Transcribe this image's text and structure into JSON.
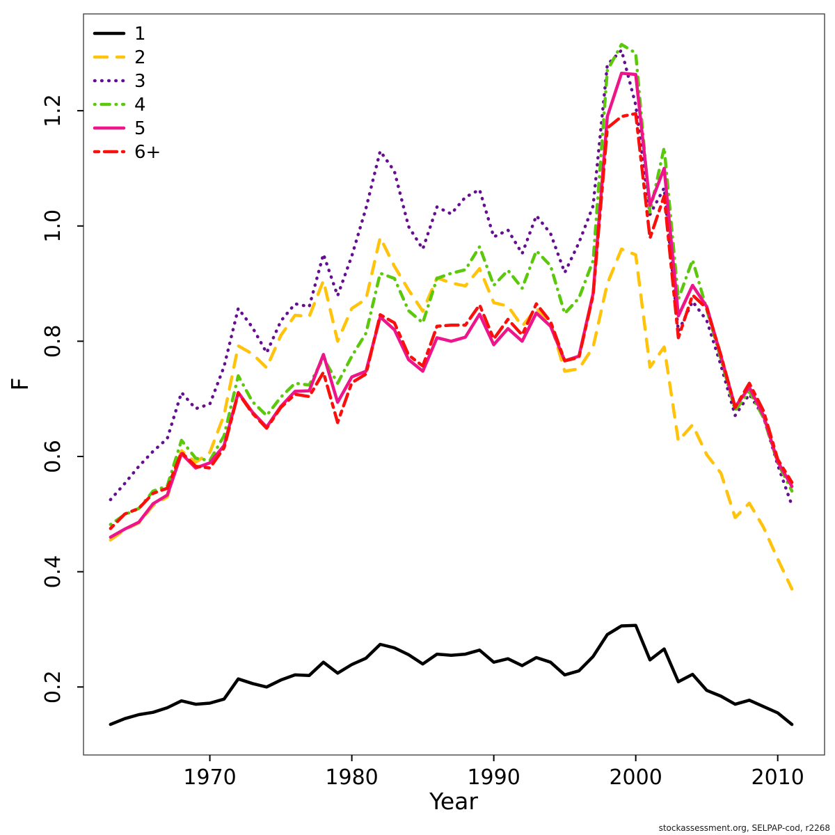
{
  "watermark": "stockassessment.org, SELPAP-cod, r2268",
  "chart_data": {
    "type": "line",
    "title": "",
    "xlabel": "Year",
    "ylabel": "F",
    "grid": false,
    "legend_position": "top-left",
    "xlim": [
      1961.1,
      2013.3
    ],
    "ylim": [
      0.082,
      1.368
    ],
    "x_ticks": [
      "1970",
      "1980",
      "1990",
      "2000",
      "2010"
    ],
    "x_tick_values": [
      1970,
      1980,
      1990,
      2000,
      2010
    ],
    "y_ticks": [
      "0.2",
      "0.4",
      "0.6",
      "0.8",
      "1.0",
      "1.2"
    ],
    "y_tick_values": [
      0.2,
      0.4,
      0.6,
      0.8,
      1.0,
      1.2
    ],
    "x": [
      1963,
      1964,
      1965,
      1966,
      1967,
      1968,
      1969,
      1970,
      1971,
      1972,
      1973,
      1974,
      1975,
      1976,
      1977,
      1978,
      1979,
      1980,
      1981,
      1982,
      1983,
      1984,
      1985,
      1986,
      1987,
      1988,
      1989,
      1990,
      1991,
      1992,
      1993,
      1994,
      1995,
      1996,
      1997,
      1998,
      1999,
      2000,
      2001,
      2002,
      2003,
      2004,
      2005,
      2006,
      2007,
      2008,
      2009,
      2010,
      2011
    ],
    "series": [
      {
        "name": "1",
        "color": "#000000",
        "dash": "solid",
        "values": [
          0.135,
          0.145,
          0.152,
          0.156,
          0.164,
          0.176,
          0.17,
          0.172,
          0.179,
          0.214,
          0.206,
          0.2,
          0.212,
          0.221,
          0.22,
          0.243,
          0.224,
          0.239,
          0.25,
          0.274,
          0.268,
          0.256,
          0.24,
          0.257,
          0.255,
          0.257,
          0.264,
          0.243,
          0.249,
          0.237,
          0.251,
          0.243,
          0.221,
          0.228,
          0.253,
          0.291,
          0.306,
          0.307,
          0.247,
          0.266,
          0.209,
          0.222,
          0.194,
          0.184,
          0.17,
          0.177,
          0.166,
          0.155,
          0.135
        ]
      },
      {
        "name": "2",
        "color": "#FFC30B",
        "dash": "longdash",
        "values": [
          0.455,
          0.473,
          0.485,
          0.515,
          0.53,
          0.61,
          0.59,
          0.607,
          0.672,
          0.792,
          0.778,
          0.754,
          0.81,
          0.845,
          0.843,
          0.905,
          0.8,
          0.857,
          0.873,
          0.98,
          0.93,
          0.889,
          0.852,
          0.91,
          0.901,
          0.896,
          0.926,
          0.867,
          0.861,
          0.826,
          0.857,
          0.832,
          0.748,
          0.752,
          0.79,
          0.9,
          0.96,
          0.95,
          0.755,
          0.79,
          0.627,
          0.655,
          0.603,
          0.571,
          0.494,
          0.519,
          0.477,
          0.422,
          0.37
        ]
      },
      {
        "name": "3",
        "color": "#660E91",
        "dash": "dotted",
        "values": [
          0.525,
          0.553,
          0.583,
          0.609,
          0.631,
          0.711,
          0.683,
          0.691,
          0.756,
          0.857,
          0.824,
          0.78,
          0.835,
          0.865,
          0.86,
          0.951,
          0.879,
          0.948,
          1.031,
          1.13,
          1.095,
          0.999,
          0.96,
          1.033,
          1.021,
          1.05,
          1.063,
          0.981,
          0.993,
          0.952,
          1.018,
          0.987,
          0.919,
          0.971,
          1.035,
          1.28,
          1.305,
          1.21,
          1.02,
          1.066,
          0.817,
          0.869,
          0.836,
          0.758,
          0.671,
          0.708,
          0.669,
          0.585,
          0.515
        ]
      },
      {
        "name": "4",
        "color": "#5BC80B",
        "dash": "dotdash",
        "values": [
          0.482,
          0.499,
          0.51,
          0.54,
          0.549,
          0.628,
          0.597,
          0.593,
          0.636,
          0.74,
          0.695,
          0.671,
          0.703,
          0.727,
          0.724,
          0.771,
          0.727,
          0.774,
          0.814,
          0.918,
          0.909,
          0.853,
          0.832,
          0.909,
          0.918,
          0.924,
          0.964,
          0.897,
          0.923,
          0.892,
          0.957,
          0.931,
          0.848,
          0.875,
          0.94,
          1.27,
          1.315,
          1.3,
          1.024,
          1.136,
          0.873,
          0.941,
          0.855,
          0.769,
          0.68,
          0.713,
          0.667,
          0.589,
          0.54
        ]
      },
      {
        "name": "5",
        "color": "#EE158B",
        "dash": "solid",
        "values": [
          0.46,
          0.474,
          0.486,
          0.518,
          0.533,
          0.605,
          0.58,
          0.589,
          0.619,
          0.711,
          0.677,
          0.651,
          0.687,
          0.713,
          0.714,
          0.777,
          0.694,
          0.738,
          0.748,
          0.842,
          0.82,
          0.768,
          0.748,
          0.806,
          0.8,
          0.807,
          0.847,
          0.794,
          0.822,
          0.8,
          0.849,
          0.826,
          0.766,
          0.774,
          0.883,
          1.19,
          1.265,
          1.263,
          1.036,
          1.1,
          0.844,
          0.897,
          0.86,
          0.774,
          0.686,
          0.72,
          0.671,
          0.591,
          0.548
        ]
      },
      {
        "name": "6+",
        "color": "#F9100C",
        "dash": "twodash",
        "values": [
          0.475,
          0.5,
          0.51,
          0.536,
          0.545,
          0.607,
          0.583,
          0.58,
          0.615,
          0.71,
          0.675,
          0.649,
          0.685,
          0.708,
          0.704,
          0.746,
          0.659,
          0.728,
          0.743,
          0.846,
          0.832,
          0.776,
          0.757,
          0.826,
          0.828,
          0.828,
          0.863,
          0.804,
          0.838,
          0.811,
          0.865,
          0.834,
          0.766,
          0.772,
          0.88,
          1.17,
          1.19,
          1.195,
          0.979,
          1.052,
          0.806,
          0.88,
          0.857,
          0.776,
          0.685,
          0.727,
          0.679,
          0.595,
          0.555
        ]
      }
    ]
  }
}
